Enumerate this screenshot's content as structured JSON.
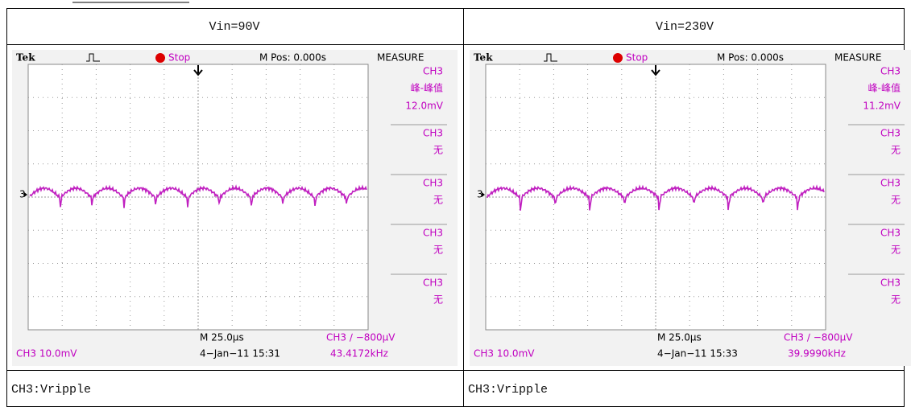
{
  "table": {
    "header": [
      "Vin=90V",
      "Vin=230V"
    ],
    "scopes": [
      {
        "brand": "Tek",
        "status": "Stop",
        "position": "M Pos: 0.000s",
        "menu": "MEASURE",
        "measurements": [
          {
            "channel": "CH3",
            "label": "峰-峰值",
            "value": "12.0mV"
          },
          {
            "channel": "CH3",
            "label": "无"
          },
          {
            "channel": "CH3",
            "label": "无"
          },
          {
            "channel": "CH3",
            "label": "无"
          },
          {
            "channel": "CH3",
            "label": "无"
          }
        ],
        "channel_marker": "3",
        "timebase": "M 25.0μs",
        "trigger": "CH3 ∕ −800μV",
        "scale": "CH3 10.0mV",
        "datetime": "4−Jan−11 15:31",
        "frequency": "43.4172kHz"
      },
      {
        "brand": "Tek",
        "status": "Stop",
        "position": "M Pos: 0.000s",
        "menu": "MEASURE",
        "measurements": [
          {
            "channel": "CH3",
            "label": "峰-峰值",
            "value": "11.2mV"
          },
          {
            "channel": "CH3",
            "label": "无"
          },
          {
            "channel": "CH3",
            "label": "无"
          },
          {
            "channel": "CH3",
            "label": "无"
          },
          {
            "channel": "CH3",
            "label": "无"
          }
        ],
        "channel_marker": "3",
        "timebase": "M 25.0μs",
        "trigger": "CH3 ∕ −800μV",
        "scale": "CH3 10.0mV",
        "datetime": "4−Jan−11 15:33",
        "frequency": "39.9990kHz"
      }
    ],
    "captions": [
      "CH3:Vripple",
      "CH3:Vripple"
    ]
  }
}
